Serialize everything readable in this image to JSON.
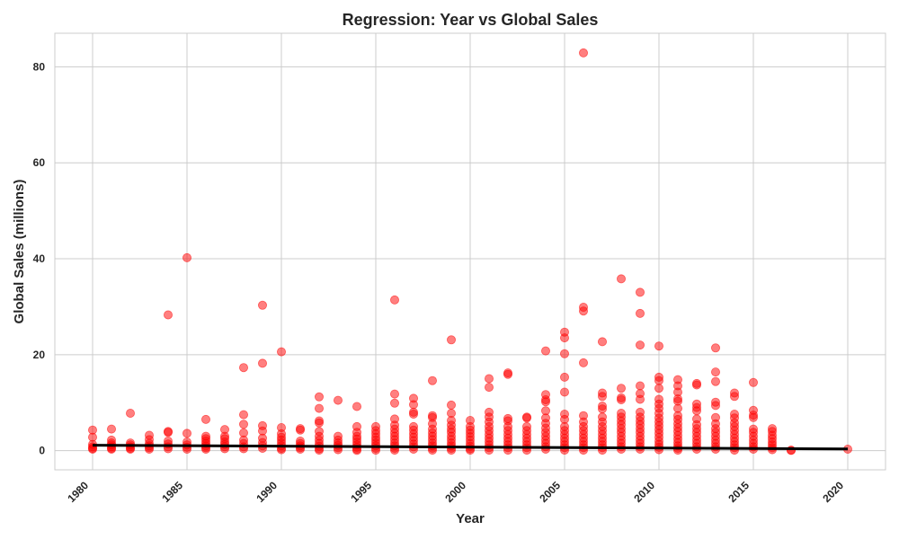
{
  "chart_data": {
    "type": "scatter",
    "title": "Regression: Year vs Global Sales",
    "xlabel": "Year",
    "ylabel": "Global Sales (millions)",
    "xlim": [
      1978.0,
      2022.0
    ],
    "ylim": [
      -4,
      87
    ],
    "xticks": [
      1980,
      1985,
      1990,
      1995,
      2000,
      2005,
      2010,
      2015,
      2020
    ],
    "yticks": [
      0,
      20,
      40,
      60,
      80
    ],
    "grid": true,
    "point_color": "#ff0000",
    "line_color": "#000000",
    "points": [
      [
        1980,
        4.3
      ],
      [
        1980,
        2.8
      ],
      [
        1980,
        1.3
      ],
      [
        1980,
        0.8
      ],
      [
        1980,
        0.5
      ],
      [
        1980,
        0.3
      ],
      [
        1981,
        4.5
      ],
      [
        1981,
        2.2
      ],
      [
        1981,
        1.6
      ],
      [
        1981,
        1.2
      ],
      [
        1981,
        0.8
      ],
      [
        1981,
        0.5
      ],
      [
        1981,
        0.3
      ],
      [
        1982,
        7.8
      ],
      [
        1982,
        1.6
      ],
      [
        1982,
        1.2
      ],
      [
        1982,
        0.8
      ],
      [
        1982,
        0.5
      ],
      [
        1982,
        0.3
      ],
      [
        1983,
        3.2
      ],
      [
        1983,
        2.3
      ],
      [
        1983,
        1.5
      ],
      [
        1983,
        1.0
      ],
      [
        1983,
        0.6
      ],
      [
        1983,
        0.3
      ],
      [
        1984,
        28.3
      ],
      [
        1984,
        4.0
      ],
      [
        1984,
        3.8
      ],
      [
        1984,
        2.0
      ],
      [
        1984,
        1.4
      ],
      [
        1984,
        0.8
      ],
      [
        1984,
        0.4
      ],
      [
        1985,
        40.2
      ],
      [
        1985,
        3.6
      ],
      [
        1985,
        1.8
      ],
      [
        1985,
        1.2
      ],
      [
        1985,
        0.7
      ],
      [
        1985,
        0.3
      ],
      [
        1986,
        6.5
      ],
      [
        1986,
        3.0
      ],
      [
        1986,
        2.5
      ],
      [
        1986,
        2.0
      ],
      [
        1986,
        1.5
      ],
      [
        1986,
        1.0
      ],
      [
        1986,
        0.6
      ],
      [
        1986,
        0.3
      ],
      [
        1987,
        4.4
      ],
      [
        1987,
        3.0
      ],
      [
        1987,
        2.5
      ],
      [
        1987,
        1.8
      ],
      [
        1987,
        1.3
      ],
      [
        1987,
        0.8
      ],
      [
        1987,
        0.4
      ],
      [
        1988,
        17.3
      ],
      [
        1988,
        7.5
      ],
      [
        1988,
        5.5
      ],
      [
        1988,
        3.7
      ],
      [
        1988,
        2.2
      ],
      [
        1988,
        1.5
      ],
      [
        1988,
        0.8
      ],
      [
        1988,
        0.4
      ],
      [
        1989,
        30.3
      ],
      [
        1989,
        18.2
      ],
      [
        1989,
        5.2
      ],
      [
        1989,
        4.1
      ],
      [
        1989,
        2.6
      ],
      [
        1989,
        1.7
      ],
      [
        1989,
        1.0
      ],
      [
        1989,
        0.5
      ],
      [
        1990,
        20.6
      ],
      [
        1990,
        4.8
      ],
      [
        1990,
        3.5
      ],
      [
        1990,
        2.8
      ],
      [
        1990,
        2.2
      ],
      [
        1990,
        1.6
      ],
      [
        1990,
        1.0
      ],
      [
        1990,
        0.5
      ],
      [
        1990,
        0.2
      ],
      [
        1991,
        4.6
      ],
      [
        1991,
        4.3
      ],
      [
        1991,
        2.0
      ],
      [
        1991,
        1.5
      ],
      [
        1991,
        1.0
      ],
      [
        1991,
        0.6
      ],
      [
        1991,
        0.3
      ],
      [
        1992,
        11.2
      ],
      [
        1992,
        8.8
      ],
      [
        1992,
        6.2
      ],
      [
        1992,
        5.8
      ],
      [
        1992,
        4.0
      ],
      [
        1992,
        3.0
      ],
      [
        1992,
        2.2
      ],
      [
        1992,
        1.5
      ],
      [
        1992,
        0.9
      ],
      [
        1992,
        0.4
      ],
      [
        1992,
        0.1
      ],
      [
        1993,
        10.5
      ],
      [
        1993,
        3.0
      ],
      [
        1993,
        2.2
      ],
      [
        1993,
        1.6
      ],
      [
        1993,
        1.1
      ],
      [
        1993,
        0.6
      ],
      [
        1993,
        0.2
      ],
      [
        1994,
        9.2
      ],
      [
        1994,
        5.0
      ],
      [
        1994,
        3.8
      ],
      [
        1994,
        3.0
      ],
      [
        1994,
        2.4
      ],
      [
        1994,
        1.8
      ],
      [
        1994,
        1.2
      ],
      [
        1994,
        0.7
      ],
      [
        1994,
        0.3
      ],
      [
        1994,
        0.05
      ],
      [
        1995,
        5.0
      ],
      [
        1995,
        4.2
      ],
      [
        1995,
        3.5
      ],
      [
        1995,
        2.8
      ],
      [
        1995,
        2.2
      ],
      [
        1995,
        1.6
      ],
      [
        1995,
        1.0
      ],
      [
        1995,
        0.5
      ],
      [
        1995,
        0.1
      ],
      [
        1996,
        31.4
      ],
      [
        1996,
        11.8
      ],
      [
        1996,
        9.9
      ],
      [
        1996,
        6.6
      ],
      [
        1996,
        5.3
      ],
      [
        1996,
        4.5
      ],
      [
        1996,
        3.7
      ],
      [
        1996,
        3.0
      ],
      [
        1996,
        2.3
      ],
      [
        1996,
        1.6
      ],
      [
        1996,
        1.0
      ],
      [
        1996,
        0.5
      ],
      [
        1996,
        0.1
      ],
      [
        1997,
        10.9
      ],
      [
        1997,
        9.6
      ],
      [
        1997,
        8.0
      ],
      [
        1997,
        7.6
      ],
      [
        1997,
        5.0
      ],
      [
        1997,
        4.3
      ],
      [
        1997,
        3.5
      ],
      [
        1997,
        2.8
      ],
      [
        1997,
        2.1
      ],
      [
        1997,
        1.4
      ],
      [
        1997,
        0.8
      ],
      [
        1997,
        0.3
      ],
      [
        1998,
        14.6
      ],
      [
        1998,
        7.3
      ],
      [
        1998,
        6.9
      ],
      [
        1998,
        5.6
      ],
      [
        1998,
        4.5
      ],
      [
        1998,
        3.7
      ],
      [
        1998,
        3.0
      ],
      [
        1998,
        2.3
      ],
      [
        1998,
        1.6
      ],
      [
        1998,
        1.0
      ],
      [
        1998,
        0.5
      ],
      [
        1998,
        0.1
      ],
      [
        1999,
        23.1
      ],
      [
        1999,
        9.5
      ],
      [
        1999,
        7.8
      ],
      [
        1999,
        6.3
      ],
      [
        1999,
        5.3
      ],
      [
        1999,
        4.5
      ],
      [
        1999,
        3.8
      ],
      [
        1999,
        3.0
      ],
      [
        1999,
        2.3
      ],
      [
        1999,
        1.6
      ],
      [
        1999,
        1.0
      ],
      [
        1999,
        0.5
      ],
      [
        1999,
        0.1
      ],
      [
        2000,
        6.3
      ],
      [
        2000,
        5.0
      ],
      [
        2000,
        4.3
      ],
      [
        2000,
        3.6
      ],
      [
        2000,
        2.9
      ],
      [
        2000,
        2.2
      ],
      [
        2000,
        1.5
      ],
      [
        2000,
        0.9
      ],
      [
        2000,
        0.4
      ],
      [
        2000,
        0.1
      ],
      [
        2001,
        15.0
      ],
      [
        2001,
        13.2
      ],
      [
        2001,
        8.0
      ],
      [
        2001,
        7.0
      ],
      [
        2001,
        6.0
      ],
      [
        2001,
        5.0
      ],
      [
        2001,
        4.2
      ],
      [
        2001,
        3.4
      ],
      [
        2001,
        2.6
      ],
      [
        2001,
        1.9
      ],
      [
        2001,
        1.2
      ],
      [
        2001,
        0.6
      ],
      [
        2001,
        0.1
      ],
      [
        2002,
        16.2
      ],
      [
        2002,
        15.9
      ],
      [
        2002,
        6.7
      ],
      [
        2002,
        6.2
      ],
      [
        2002,
        5.0
      ],
      [
        2002,
        4.2
      ],
      [
        2002,
        3.4
      ],
      [
        2002,
        2.6
      ],
      [
        2002,
        1.9
      ],
      [
        2002,
        1.2
      ],
      [
        2002,
        0.6
      ],
      [
        2002,
        0.1
      ],
      [
        2003,
        7.0
      ],
      [
        2003,
        6.8
      ],
      [
        2003,
        5.0
      ],
      [
        2003,
        4.2
      ],
      [
        2003,
        3.4
      ],
      [
        2003,
        2.6
      ],
      [
        2003,
        1.9
      ],
      [
        2003,
        1.2
      ],
      [
        2003,
        0.6
      ],
      [
        2003,
        0.1
      ],
      [
        2004,
        20.8
      ],
      [
        2004,
        11.7
      ],
      [
        2004,
        10.6
      ],
      [
        2004,
        10.2
      ],
      [
        2004,
        8.3
      ],
      [
        2004,
        6.8
      ],
      [
        2004,
        5.7
      ],
      [
        2004,
        4.7
      ],
      [
        2004,
        3.8
      ],
      [
        2004,
        3.0
      ],
      [
        2004,
        2.2
      ],
      [
        2004,
        1.5
      ],
      [
        2004,
        0.8
      ],
      [
        2004,
        0.3
      ],
      [
        2005,
        24.7
      ],
      [
        2005,
        23.5
      ],
      [
        2005,
        20.2
      ],
      [
        2005,
        15.3
      ],
      [
        2005,
        12.2
      ],
      [
        2005,
        7.6
      ],
      [
        2005,
        6.5
      ],
      [
        2005,
        5.0
      ],
      [
        2005,
        4.2
      ],
      [
        2005,
        3.4
      ],
      [
        2005,
        2.6
      ],
      [
        2005,
        1.9
      ],
      [
        2005,
        1.2
      ],
      [
        2005,
        0.6
      ],
      [
        2005,
        0.1
      ],
      [
        2006,
        82.9
      ],
      [
        2006,
        29.9
      ],
      [
        2006,
        29.1
      ],
      [
        2006,
        18.3
      ],
      [
        2006,
        7.3
      ],
      [
        2006,
        6.0
      ],
      [
        2006,
        5.0
      ],
      [
        2006,
        4.2
      ],
      [
        2006,
        3.4
      ],
      [
        2006,
        2.6
      ],
      [
        2006,
        1.9
      ],
      [
        2006,
        1.2
      ],
      [
        2006,
        0.6
      ],
      [
        2006,
        0.1
      ],
      [
        2007,
        22.7
      ],
      [
        2007,
        12.0
      ],
      [
        2007,
        11.3
      ],
      [
        2007,
        9.3
      ],
      [
        2007,
        8.7
      ],
      [
        2007,
        7.0
      ],
      [
        2007,
        6.0
      ],
      [
        2007,
        5.0
      ],
      [
        2007,
        4.2
      ],
      [
        2007,
        3.4
      ],
      [
        2007,
        2.6
      ],
      [
        2007,
        1.9
      ],
      [
        2007,
        1.2
      ],
      [
        2007,
        0.6
      ],
      [
        2007,
        0.1
      ],
      [
        2008,
        35.8
      ],
      [
        2008,
        13.0
      ],
      [
        2008,
        11.0
      ],
      [
        2008,
        10.6
      ],
      [
        2008,
        7.8
      ],
      [
        2008,
        7.0
      ],
      [
        2008,
        6.2
      ],
      [
        2008,
        5.4
      ],
      [
        2008,
        4.6
      ],
      [
        2008,
        3.8
      ],
      [
        2008,
        3.0
      ],
      [
        2008,
        2.2
      ],
      [
        2008,
        1.5
      ],
      [
        2008,
        0.8
      ],
      [
        2008,
        0.3
      ],
      [
        2009,
        33.0
      ],
      [
        2009,
        28.6
      ],
      [
        2009,
        22.0
      ],
      [
        2009,
        13.5
      ],
      [
        2009,
        11.9
      ],
      [
        2009,
        10.7
      ],
      [
        2009,
        8.0
      ],
      [
        2009,
        7.0
      ],
      [
        2009,
        6.2
      ],
      [
        2009,
        5.4
      ],
      [
        2009,
        4.6
      ],
      [
        2009,
        3.8
      ],
      [
        2009,
        3.0
      ],
      [
        2009,
        2.2
      ],
      [
        2009,
        1.5
      ],
      [
        2009,
        0.8
      ],
      [
        2009,
        0.3
      ],
      [
        2010,
        21.8
      ],
      [
        2010,
        15.3
      ],
      [
        2010,
        14.6
      ],
      [
        2010,
        13.0
      ],
      [
        2010,
        10.7
      ],
      [
        2010,
        9.7
      ],
      [
        2010,
        8.8
      ],
      [
        2010,
        7.8
      ],
      [
        2010,
        6.8
      ],
      [
        2010,
        6.0
      ],
      [
        2010,
        5.2
      ],
      [
        2010,
        4.4
      ],
      [
        2010,
        3.6
      ],
      [
        2010,
        2.8
      ],
      [
        2010,
        2.0
      ],
      [
        2010,
        1.3
      ],
      [
        2010,
        0.7
      ],
      [
        2010,
        0.2
      ],
      [
        2011,
        14.8
      ],
      [
        2011,
        13.5
      ],
      [
        2011,
        12.2
      ],
      [
        2011,
        10.8
      ],
      [
        2011,
        10.3
      ],
      [
        2011,
        8.8
      ],
      [
        2011,
        7.3
      ],
      [
        2011,
        6.5
      ],
      [
        2011,
        5.6
      ],
      [
        2011,
        4.8
      ],
      [
        2011,
        4.0
      ],
      [
        2011,
        3.2
      ],
      [
        2011,
        2.4
      ],
      [
        2011,
        1.7
      ],
      [
        2011,
        1.0
      ],
      [
        2011,
        0.5
      ],
      [
        2011,
        0.1
      ],
      [
        2012,
        14.0
      ],
      [
        2012,
        13.7
      ],
      [
        2012,
        9.7
      ],
      [
        2012,
        9.0
      ],
      [
        2012,
        8.3
      ],
      [
        2012,
        6.6
      ],
      [
        2012,
        5.4
      ],
      [
        2012,
        4.6
      ],
      [
        2012,
        3.8
      ],
      [
        2012,
        3.0
      ],
      [
        2012,
        2.2
      ],
      [
        2012,
        1.5
      ],
      [
        2012,
        0.8
      ],
      [
        2012,
        0.3
      ],
      [
        2013,
        21.4
      ],
      [
        2013,
        16.4
      ],
      [
        2013,
        14.4
      ],
      [
        2013,
        10.1
      ],
      [
        2013,
        9.4
      ],
      [
        2013,
        6.9
      ],
      [
        2013,
        5.6
      ],
      [
        2013,
        4.6
      ],
      [
        2013,
        3.8
      ],
      [
        2013,
        3.0
      ],
      [
        2013,
        2.2
      ],
      [
        2013,
        1.5
      ],
      [
        2013,
        0.8
      ],
      [
        2013,
        0.3
      ],
      [
        2014,
        12.0
      ],
      [
        2014,
        11.3
      ],
      [
        2014,
        7.6
      ],
      [
        2014,
        6.8
      ],
      [
        2014,
        5.8
      ],
      [
        2014,
        5.0
      ],
      [
        2014,
        4.2
      ],
      [
        2014,
        3.4
      ],
      [
        2014,
        2.6
      ],
      [
        2014,
        1.9
      ],
      [
        2014,
        1.2
      ],
      [
        2014,
        0.6
      ],
      [
        2014,
        0.1
      ],
      [
        2015,
        14.2
      ],
      [
        2015,
        8.4
      ],
      [
        2015,
        7.4
      ],
      [
        2015,
        6.9
      ],
      [
        2015,
        4.5
      ],
      [
        2015,
        3.8
      ],
      [
        2015,
        3.0
      ],
      [
        2015,
        2.2
      ],
      [
        2015,
        1.5
      ],
      [
        2015,
        0.8
      ],
      [
        2015,
        0.3
      ],
      [
        2016,
        4.6
      ],
      [
        2016,
        4.0
      ],
      [
        2016,
        3.2
      ],
      [
        2016,
        2.5
      ],
      [
        2016,
        1.8
      ],
      [
        2016,
        1.2
      ],
      [
        2016,
        0.6
      ],
      [
        2016,
        0.2
      ],
      [
        2017,
        0.1
      ],
      [
        2017,
        0.05
      ],
      [
        2020,
        0.3
      ]
    ],
    "regression_line": [
      [
        1980,
        1.12
      ],
      [
        2020,
        0.35
      ]
    ]
  }
}
